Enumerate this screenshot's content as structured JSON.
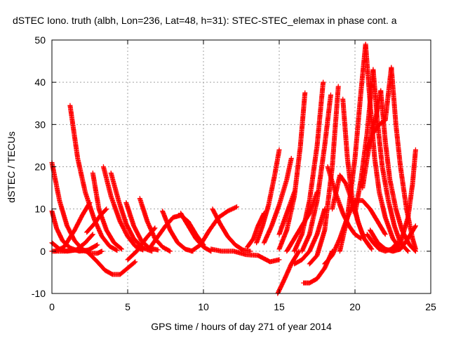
{
  "chart_data": {
    "type": "scatter",
    "title": "dSTEC Iono. truth (albh, Lon=236, Lat=48, h=31): STEC-STEC_elemax in phase cont. a",
    "xlabel": "GPS time / hours of day 271 of year 2014",
    "ylabel": "dSTEC  / TECUs",
    "xlim": [
      0,
      25
    ],
    "ylim": [
      -10,
      50
    ],
    "x_ticks": [
      0,
      5,
      10,
      15,
      20,
      25
    ],
    "y_ticks": [
      -10,
      0,
      10,
      20,
      30,
      40,
      50
    ],
    "grid": true,
    "marker": "+",
    "color": "#ff0000",
    "series": [
      {
        "x": [
          0.0,
          0.5,
          1.0,
          1.5,
          2.0,
          2.5,
          3.0,
          3.3
        ],
        "y": [
          21,
          12,
          6,
          2.5,
          0.5,
          -0.5,
          -0.5,
          0
        ]
      },
      {
        "x": [
          0.0,
          0.3,
          0.7,
          1.2,
          1.8,
          2.4,
          3.0
        ],
        "y": [
          9.5,
          5.5,
          2.5,
          0.8,
          0,
          0.3,
          1.5
        ]
      },
      {
        "x": [
          0.0,
          0.5,
          1.0,
          1.6,
          2.2,
          2.7
        ],
        "y": [
          2,
          0.5,
          0,
          0.3,
          2,
          4
        ]
      },
      {
        "x": [
          0.0,
          0.8,
          1.5,
          2.3,
          3.0,
          3.5,
          4.0,
          4.5,
          5.0,
          5.5
        ],
        "y": [
          0,
          0,
          0.3,
          0,
          -2.5,
          -4.5,
          -5.5,
          -5.5,
          -4,
          -2.5
        ]
      },
      {
        "x": [
          1.2,
          1.7,
          2.2,
          2.8,
          3.3,
          3.8,
          4.3
        ],
        "y": [
          34.5,
          22,
          14,
          7.5,
          3.5,
          1.2,
          0.2
        ]
      },
      {
        "x": [
          0.2,
          0.8,
          1.5,
          2.0,
          2.5
        ],
        "y": [
          0,
          1,
          5,
          8.5,
          11.5
        ]
      },
      {
        "x": [
          2.7,
          3.1,
          3.6,
          4.1,
          4.6
        ],
        "y": [
          18.5,
          10,
          5,
          2,
          0.5
        ]
      },
      {
        "x": [
          3.4,
          3.9,
          4.5,
          5.0,
          5.5,
          6.0
        ],
        "y": [
          20,
          13,
          7,
          3.5,
          1.2,
          0.3
        ]
      },
      {
        "x": [
          3.9,
          4.4,
          4.9,
          5.4,
          6.0,
          6.6
        ],
        "y": [
          18.5,
          12,
          6.5,
          3,
          0.8,
          0
        ]
      },
      {
        "x": [
          2.3,
          2.8,
          3.2,
          3.6
        ],
        "y": [
          4.5,
          6.5,
          8.5,
          10
        ]
      },
      {
        "x": [
          4.9,
          5.4,
          5.9,
          6.4,
          7.0
        ],
        "y": [
          11.5,
          6,
          2.5,
          0.8,
          0.3
        ]
      },
      {
        "x": [
          5.8,
          6.3,
          6.8,
          7.3,
          7.8
        ],
        "y": [
          12.5,
          7,
          3,
          1,
          0
        ]
      },
      {
        "x": [
          5.0,
          5.6,
          6.2,
          6.8
        ],
        "y": [
          -2,
          0,
          3,
          5.5
        ]
      },
      {
        "x": [
          7.3,
          7.8,
          8.3,
          8.8,
          9.3
        ],
        "y": [
          9.5,
          5,
          2,
          0.5,
          0
        ]
      },
      {
        "x": [
          6.5,
          7.0,
          7.5,
          8.0,
          8.5,
          9.0,
          9.5,
          10.0
        ],
        "y": [
          1,
          3.5,
          6,
          8,
          8.5,
          7,
          4,
          1.5
        ]
      },
      {
        "x": [
          8.5,
          9.0,
          9.5,
          10.0,
          10.5
        ],
        "y": [
          9,
          6,
          3,
          1,
          0
        ]
      },
      {
        "x": [
          9.2,
          9.8,
          10.4,
          11.0,
          11.6,
          12.2
        ],
        "y": [
          0,
          1.5,
          5,
          8,
          9.5,
          10.5
        ]
      },
      {
        "x": [
          10.6,
          11.1,
          11.6,
          12.1,
          12.6,
          13.1
        ],
        "y": [
          10,
          6.5,
          3.5,
          1.5,
          0.3,
          0
        ]
      },
      {
        "x": [
          10.5,
          11.2,
          12.0,
          12.8,
          13.6,
          14.4,
          15.0
        ],
        "y": [
          0.5,
          0,
          0,
          -0.8,
          -1,
          -2.5,
          -2
        ]
      },
      {
        "x": [
          12.9,
          13.3,
          13.6,
          14.0
        ],
        "y": [
          1,
          3,
          6,
          9
        ]
      },
      {
        "x": [
          13.5,
          13.9,
          14.3,
          14.7,
          15.0
        ],
        "y": [
          2,
          6,
          11,
          18,
          24
        ]
      },
      {
        "x": [
          14.0,
          14.5,
          15.0,
          15.5,
          15.8
        ],
        "y": [
          2,
          6,
          11,
          17,
          22
        ]
      },
      {
        "x": [
          15.0,
          15.4,
          15.8,
          16.0
        ],
        "y": [
          4,
          8,
          12,
          14
        ]
      },
      {
        "x": [
          15.0,
          15.5,
          16.0,
          16.4,
          16.7
        ],
        "y": [
          0.5,
          5,
          13,
          25,
          37.5
        ]
      },
      {
        "x": [
          14.9,
          15.3,
          15.8,
          16.3
        ],
        "y": [
          -10,
          -7,
          -3,
          0
        ]
      },
      {
        "x": [
          15.5,
          16.0,
          16.5,
          17.0,
          17.5
        ],
        "y": [
          0,
          3,
          6,
          9,
          14
        ]
      },
      {
        "x": [
          16.0,
          16.5,
          17.0,
          17.5,
          17.9
        ],
        "y": [
          0,
          4,
          12,
          25,
          40
        ]
      },
      {
        "x": [
          16.0,
          16.5,
          17.0,
          17.5,
          18.0
        ],
        "y": [
          -3,
          -2,
          0,
          4,
          10
        ]
      },
      {
        "x": [
          16.5,
          17.0,
          17.5,
          18.0,
          18.4
        ],
        "y": [
          0,
          4,
          12,
          25,
          37
        ]
      },
      {
        "x": [
          16.6,
          17.0,
          17.5,
          18.0,
          18.5
        ],
        "y": [
          -7.5,
          -7.5,
          -6.5,
          -4,
          0
        ]
      },
      {
        "x": [
          17.0,
          17.5,
          18.0,
          18.5,
          18.9
        ],
        "y": [
          -3,
          -1,
          5,
          20,
          39
        ]
      },
      {
        "x": [
          18.0,
          18.5,
          19.0,
          19.5,
          20.0,
          20.5,
          21.0,
          21.5,
          22.0
        ],
        "y": [
          -3,
          -1,
          3,
          8,
          12,
          12,
          10,
          7,
          4
        ]
      },
      {
        "x": [
          18.2,
          18.7,
          19.2,
          19.6,
          20.0,
          20.4
        ],
        "y": [
          20,
          14,
          9,
          6,
          4,
          3
        ]
      },
      {
        "x": [
          19.2,
          19.5,
          19.8,
          20.2,
          20.6,
          21.0
        ],
        "y": [
          36,
          22,
          13,
          7,
          3,
          1
        ]
      },
      {
        "x": [
          18.5,
          19.0,
          19.4,
          19.8,
          20.2,
          20.6,
          21.1
        ],
        "y": [
          10,
          18,
          16,
          12,
          7,
          3,
          0.5
        ]
      },
      {
        "x": [
          19.0,
          19.5,
          20.0,
          20.4,
          20.7
        ],
        "y": [
          0,
          8,
          22,
          38,
          49
        ]
      },
      {
        "x": [
          20.7,
          21.0,
          21.3,
          21.6,
          22.0,
          22.5,
          23.0
        ],
        "y": [
          49,
          35,
          22,
          14,
          8,
          3,
          0.5
        ]
      },
      {
        "x": [
          20.0,
          20.4,
          20.8,
          21.2
        ],
        "y": [
          9,
          17,
          28,
          43
        ]
      },
      {
        "x": [
          21.2,
          21.5,
          21.8,
          22.2,
          22.6,
          23.0,
          23.5
        ],
        "y": [
          43,
          30,
          20,
          12,
          6,
          2,
          0
        ]
      },
      {
        "x": [
          20.5,
          20.8,
          21.1,
          21.4,
          21.7
        ],
        "y": [
          15,
          22,
          28,
          32,
          38
        ]
      },
      {
        "x": [
          21.7,
          22.0,
          22.3,
          22.7,
          23.1,
          23.6,
          24.0
        ],
        "y": [
          38,
          26,
          17,
          10,
          5,
          1.5,
          0
        ]
      },
      {
        "x": [
          20.8,
          21.2,
          21.6,
          22.0,
          22.4
        ],
        "y": [
          24,
          28,
          30,
          31,
          43.5
        ]
      },
      {
        "x": [
          22.4,
          22.7,
          23.0,
          23.4,
          23.8,
          24.0
        ],
        "y": [
          43.5,
          30,
          20,
          10,
          3,
          0.5
        ]
      },
      {
        "x": [
          21.0,
          21.5,
          22.0,
          22.5,
          23.0,
          23.5,
          24.0
        ],
        "y": [
          5,
          2,
          0.5,
          0,
          0.5,
          3,
          6
        ]
      },
      {
        "x": [
          22.5,
          23.0,
          23.5,
          23.8,
          24.0
        ],
        "y": [
          0,
          2,
          8,
          16,
          24
        ]
      },
      {
        "x": [
          20.8,
          21.2,
          21.6,
          22.0,
          22.4,
          22.8
        ],
        "y": [
          4,
          2,
          0.5,
          0,
          0.5,
          2
        ]
      }
    ]
  }
}
